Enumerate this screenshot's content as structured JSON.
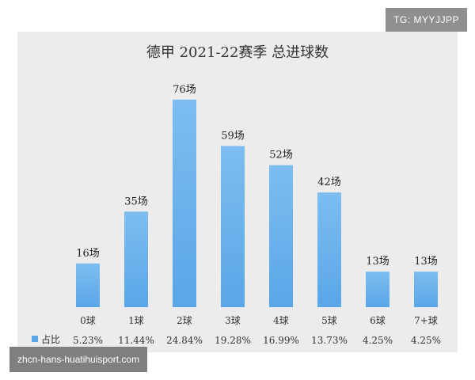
{
  "watermark": "TG: MYYJJPP",
  "caption": "zhcn-hans-huatihuisport.com",
  "chart_data": {
    "type": "bar",
    "title": "德甲 2021-22赛季 总进球数",
    "categories": [
      "0球",
      "1球",
      "2球",
      "3球",
      "4球",
      "5球",
      "6球",
      "7+球"
    ],
    "values": [
      16,
      35,
      76,
      59,
      52,
      42,
      13,
      13
    ],
    "value_labels": [
      "16场",
      "35场",
      "76场",
      "59场",
      "52场",
      "42场",
      "13场",
      "13场"
    ],
    "share_legend": "占比",
    "share_labels": [
      "5.23%",
      "11.44%",
      "24.84%",
      "19.28%",
      "16.99%",
      "13.73%",
      "4.25%",
      "4.25%"
    ],
    "ylim": [
      0,
      80
    ],
    "bar_color": "#5aa6e8",
    "grid": false
  }
}
